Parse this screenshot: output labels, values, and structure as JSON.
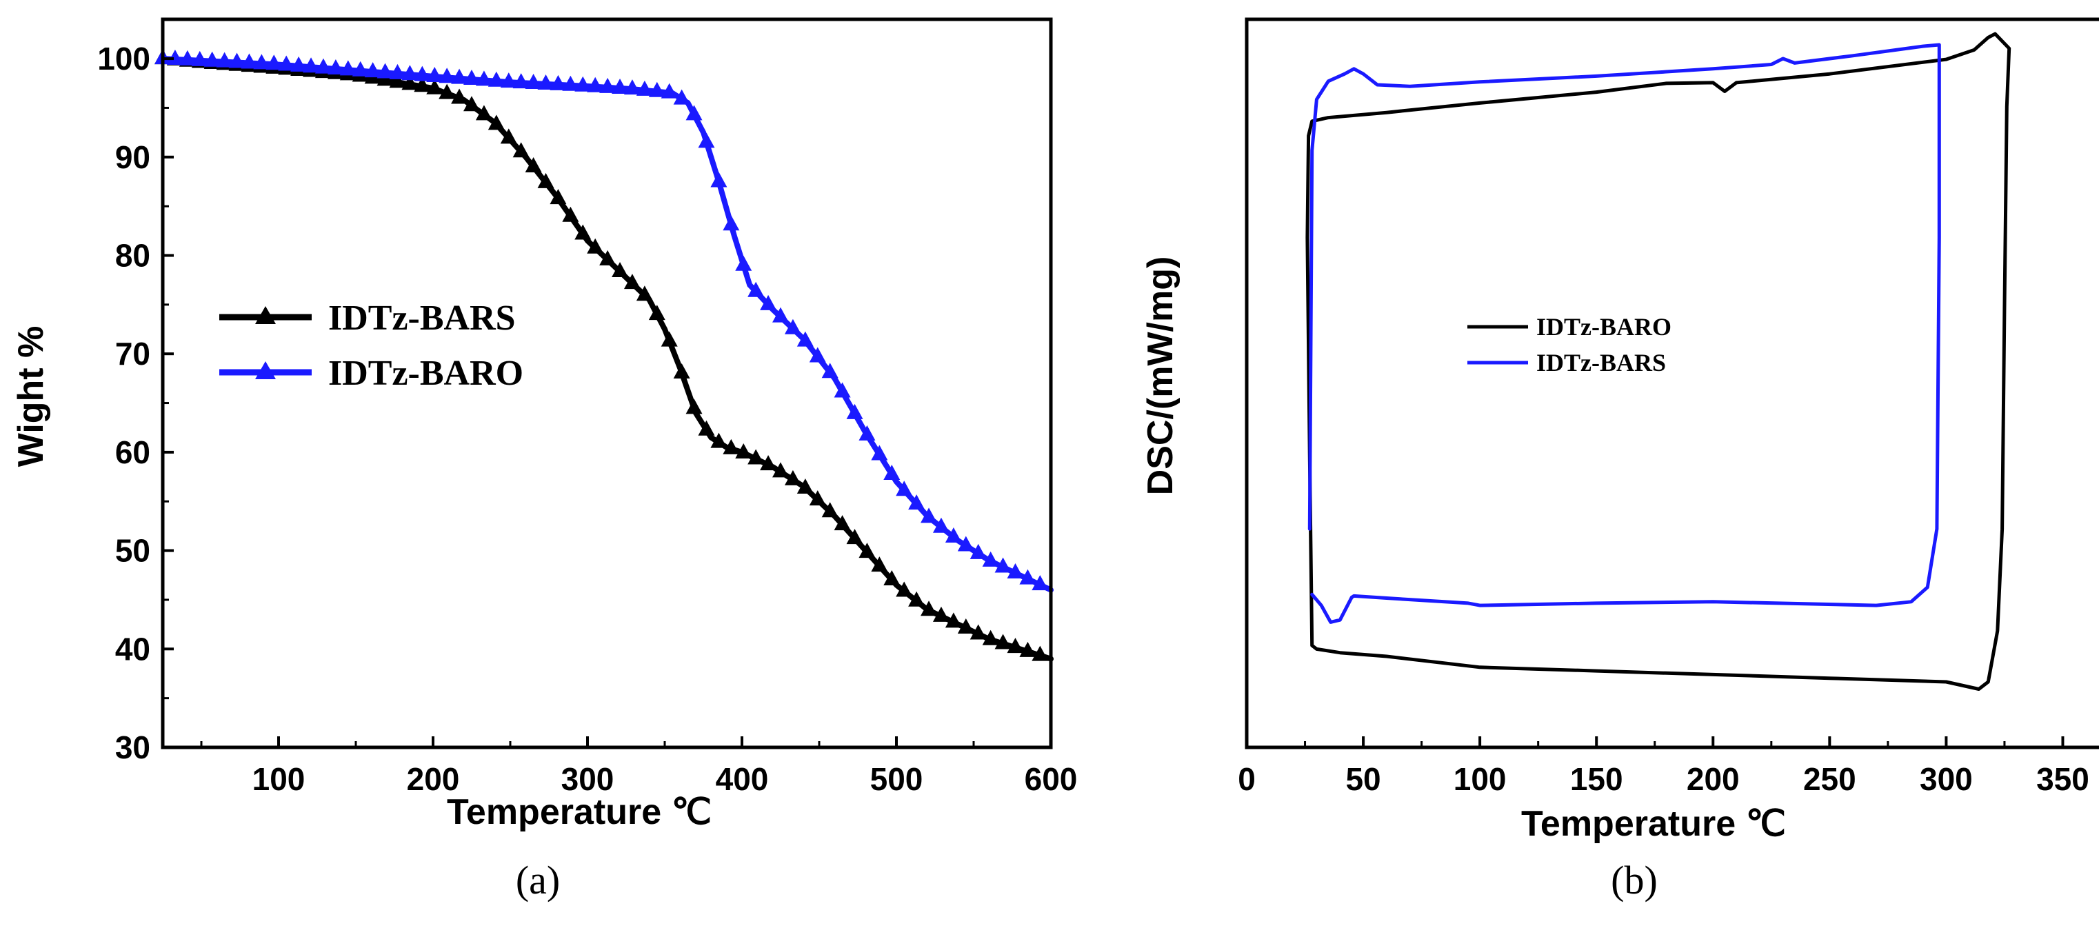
{
  "colors": {
    "black_series": "#000000",
    "blue_series": "#1a1aff"
  },
  "chart_data": [
    {
      "type": "line",
      "panel": "a",
      "caption": "(a)",
      "xlabel": "Temperature ℃",
      "ylabel": "Wight %",
      "xlim": [
        25,
        600
      ],
      "ylim": [
        30,
        104
      ],
      "xticks": [
        100,
        200,
        300,
        400,
        500,
        600
      ],
      "yticks": [
        30,
        40,
        50,
        60,
        70,
        80,
        90,
        100
      ],
      "legend_position": "middle-left",
      "series": [
        {
          "name": "IDTz-BARS",
          "color": "#000000",
          "marker": "triangle",
          "x": [
            25,
            50,
            100,
            150,
            200,
            220,
            240,
            260,
            280,
            300,
            320,
            340,
            350,
            360,
            370,
            380,
            390,
            400,
            420,
            440,
            460,
            480,
            500,
            520,
            540,
            560,
            580,
            600
          ],
          "y": [
            100,
            99.6,
            99,
            98.3,
            97,
            95.8,
            93.5,
            90,
            86,
            81.5,
            78.5,
            75.5,
            72.5,
            68.5,
            64,
            61.5,
            60.5,
            60,
            58.5,
            56.5,
            53.5,
            50,
            46.5,
            44,
            42.5,
            41,
            40,
            39
          ]
        },
        {
          "name": "IDTz-BARO",
          "color": "#1a1aff",
          "marker": "triangle",
          "x": [
            25,
            50,
            100,
            150,
            200,
            250,
            300,
            330,
            355,
            365,
            375,
            385,
            395,
            405,
            420,
            440,
            460,
            480,
            500,
            520,
            540,
            560,
            580,
            600
          ],
          "y": [
            100,
            99.8,
            99.4,
            98.8,
            98.2,
            97.6,
            97.2,
            96.9,
            96.5,
            95.5,
            92.5,
            87.5,
            82,
            77,
            74.5,
            71.5,
            67.5,
            62,
            57,
            53.5,
            51,
            49,
            47.5,
            46
          ]
        }
      ]
    },
    {
      "type": "line",
      "panel": "b",
      "caption": "(b)",
      "xlabel": "Temperature ℃",
      "ylabel": "DSC/(mW/mg)",
      "xlim": [
        0,
        375
      ],
      "ylim": [
        0,
        100
      ],
      "xticks": [
        0,
        50,
        100,
        150,
        200,
        250,
        300,
        350
      ],
      "yticks": [],
      "legend_position": "center",
      "series": [
        {
          "name": "IDTz-BARO",
          "color": "#000000",
          "x": [
            28,
            27,
            26,
            26.5,
            28,
            35,
            60,
            100,
            150,
            180,
            200,
            205,
            210,
            250,
            300,
            312,
            318,
            321,
            327,
            326,
            325,
            324,
            322,
            318,
            314,
            300,
            250,
            200,
            150,
            100,
            60,
            40,
            30,
            28
          ],
          "y": [
            14,
            40,
            70,
            84,
            86,
            86.5,
            87.2,
            88.5,
            90,
            91.2,
            91.3,
            90.1,
            91.3,
            92.5,
            94.5,
            95.8,
            97.5,
            98,
            96,
            88,
            60,
            30,
            16,
            9,
            8,
            9,
            9.5,
            10,
            10.5,
            11,
            12.5,
            13,
            13.5,
            14
          ]
        },
        {
          "name": "IDTz-BARS",
          "color": "#1a1aff",
          "x": [
            27,
            28,
            30,
            35,
            42,
            46,
            50,
            56,
            70,
            100,
            150,
            200,
            225,
            230,
            235,
            260,
            290,
            297,
            297,
            296,
            292,
            285,
            270,
            200,
            150,
            100,
            95,
            60,
            46,
            45,
            40,
            36,
            32,
            28
          ],
          "y": [
            30,
            82,
            89,
            91.5,
            92.5,
            93.2,
            92.5,
            91,
            90.8,
            91.4,
            92.2,
            93.2,
            93.8,
            94.6,
            94,
            95,
            96.3,
            96.5,
            70,
            30,
            22,
            20,
            19.5,
            20,
            19.8,
            19.5,
            19.8,
            20.5,
            20.8,
            20.6,
            17.5,
            17.2,
            19.5,
            21
          ]
        }
      ]
    }
  ]
}
